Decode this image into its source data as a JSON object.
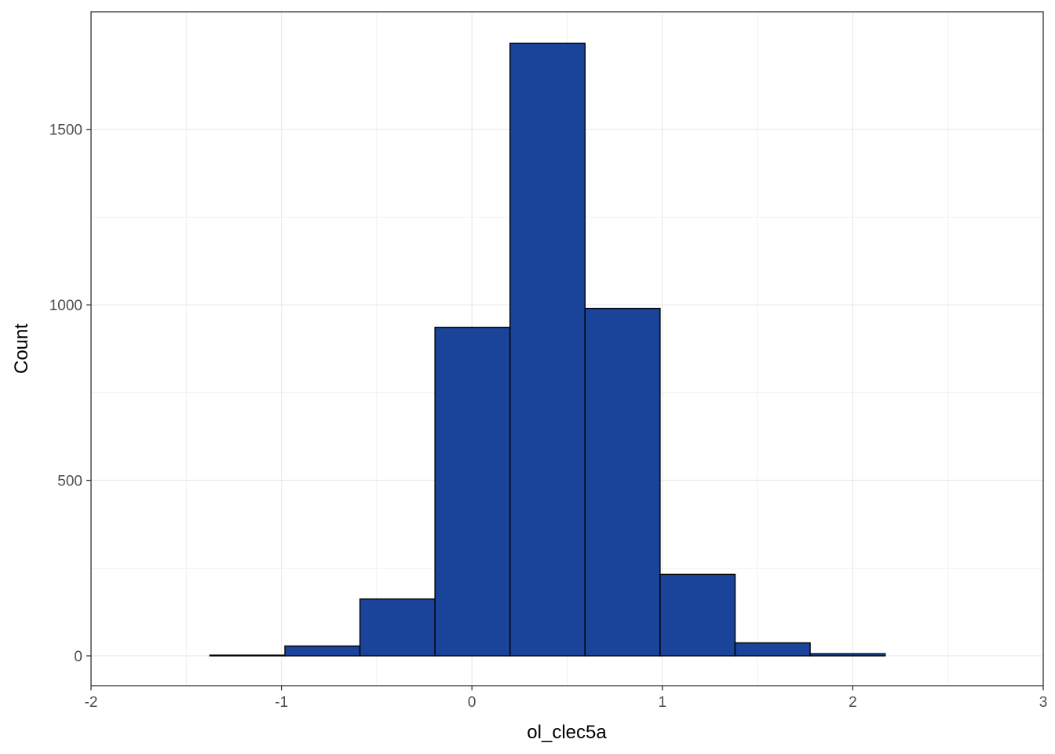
{
  "chart_data": {
    "type": "histogram",
    "xlabel": "ol_clec5a",
    "ylabel": "Count",
    "xlim": [
      -2.0,
      3.0
    ],
    "ylim": [
      -85,
      1835
    ],
    "x_ticks": [
      -2,
      -1,
      0,
      1,
      2,
      3
    ],
    "y_ticks": [
      0,
      500,
      1000,
      1500
    ],
    "grid": true,
    "fill_color": "#1A4499",
    "edge_color": "#000000",
    "bins": [
      {
        "x0": -1.77,
        "x1": -1.376,
        "count": 0
      },
      {
        "x0": -1.376,
        "x1": -0.982,
        "count": 2
      },
      {
        "x0": -0.982,
        "x1": -0.588,
        "count": 28
      },
      {
        "x0": -0.588,
        "x1": -0.194,
        "count": 162
      },
      {
        "x0": -0.194,
        "x1": 0.2,
        "count": 936
      },
      {
        "x0": 0.2,
        "x1": 0.594,
        "count": 1745
      },
      {
        "x0": 0.594,
        "x1": 0.988,
        "count": 990
      },
      {
        "x0": 0.988,
        "x1": 1.382,
        "count": 232
      },
      {
        "x0": 1.382,
        "x1": 1.776,
        "count": 37
      },
      {
        "x0": 1.776,
        "x1": 2.17,
        "count": 6
      },
      {
        "x0": 2.17,
        "x1": 2.564,
        "count": 0
      },
      {
        "x0": 2.564,
        "x1": 2.958,
        "count": 0
      }
    ]
  }
}
